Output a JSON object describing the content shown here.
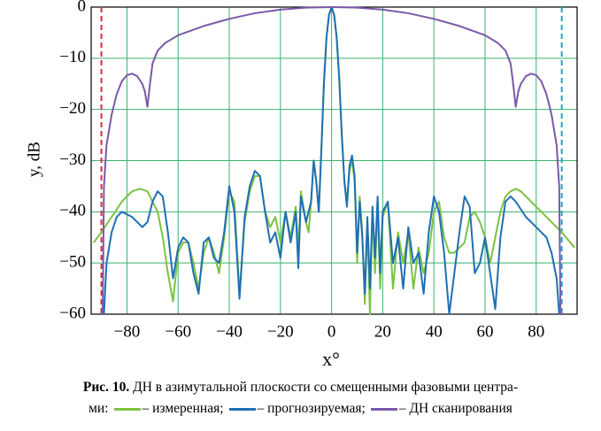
{
  "chart_data": {
    "type": "line",
    "xlabel": "x°",
    "ylabel": "y, dB",
    "caption_label": "Рис. 10.",
    "caption": "ДН в азимутальной плоскости со смещенными фазовыми центра-",
    "caption_cont": "ми:",
    "xlim": [
      -94,
      96
    ],
    "ylim": [
      -60,
      0
    ],
    "xticks": [
      {
        "value": -80,
        "label": "−80"
      },
      {
        "value": -60,
        "label": "−60"
      },
      {
        "value": -40,
        "label": "−40"
      },
      {
        "value": -20,
        "label": "−20"
      },
      0,
      20,
      40,
      60,
      80
    ],
    "yticks": [
      0,
      {
        "value": -10,
        "label": "−10"
      },
      {
        "value": -20,
        "label": "−20"
      },
      {
        "value": -30,
        "label": "−30"
      },
      {
        "value": -40,
        "label": "−40"
      },
      {
        "value": -50,
        "label": "−50"
      },
      {
        "value": -60,
        "label": "−60"
      }
    ],
    "grid": true,
    "grid_color": "#3cb36e",
    "vlines": [
      {
        "x": -90,
        "color": "#e0283c"
      },
      {
        "x": 90,
        "color": "#1aa6c8"
      }
    ],
    "series": [
      {
        "name": "– измеренная;",
        "color": "#7cc242",
        "x": [
          -93,
          -90,
          -86,
          -82,
          -78,
          -75,
          -72,
          -70,
          -68,
          -66,
          -64,
          -62,
          -60,
          -58,
          -56,
          -54,
          -52,
          -50,
          -48,
          -46,
          -44,
          -42,
          -40,
          -38,
          -36,
          -34,
          -32,
          -30,
          -28,
          -26,
          -24,
          -22,
          -20,
          -18,
          -16,
          -14,
          -13,
          -12,
          -10,
          -9,
          -8,
          -7,
          -6,
          -5,
          -4,
          -3,
          -2,
          -1,
          0,
          1,
          2,
          3,
          4,
          5,
          6,
          7,
          8,
          9,
          10,
          11,
          12,
          13,
          14,
          15,
          16,
          17,
          18,
          19,
          20,
          22,
          24,
          26,
          28,
          30,
          32,
          34,
          36,
          38,
          40,
          42,
          44,
          46,
          48,
          50,
          52,
          54,
          56,
          58,
          60,
          62,
          64,
          66,
          68,
          70,
          72,
          74,
          78,
          82,
          86,
          90,
          95
        ],
        "values": [
          -46,
          -44,
          -41,
          -38,
          -36,
          -35.5,
          -36,
          -38,
          -40,
          -45,
          -52,
          -57.5,
          -48,
          -46,
          -46,
          -50,
          -55,
          -48,
          -45,
          -48,
          -52,
          -45,
          -36,
          -38,
          -56,
          -42,
          -36,
          -33,
          -33,
          -40,
          -43,
          -41,
          -46,
          -40,
          -45,
          -39,
          -48,
          -36,
          -42,
          -44,
          -38,
          -30,
          -34,
          -40,
          -28,
          -15,
          -6,
          -1.5,
          0,
          -1.5,
          -6,
          -14,
          -25,
          -34,
          -38,
          -32,
          -30,
          -34,
          -50,
          -37,
          -44,
          -58,
          -42,
          -60,
          -40,
          -52,
          -38,
          -55,
          -41,
          -38,
          -55,
          -44,
          -50,
          -44,
          -55,
          -47,
          -52,
          -48,
          -40,
          -38,
          -45,
          -48,
          -48,
          -47,
          -46,
          -41,
          -40,
          -42,
          -45,
          -50,
          -45,
          -40,
          -37,
          -36,
          -35.5,
          -36,
          -38,
          -40,
          -42,
          -44,
          -47
        ]
      },
      {
        "name": "– прогнозируемая;",
        "color": "#1f6fb4",
        "x": [
          -89,
          -88,
          -86,
          -84,
          -82,
          -78,
          -76,
          -74,
          -72,
          -70,
          -68,
          -66,
          -64,
          -62,
          -60,
          -58,
          -56,
          -54,
          -52,
          -50,
          -48,
          -46,
          -44,
          -42,
          -40,
          -38,
          -36,
          -34,
          -32,
          -30,
          -28,
          -26,
          -24,
          -22,
          -20,
          -18,
          -16,
          -14,
          -13,
          -12,
          -10,
          -8,
          -7,
          -6,
          -5,
          -4,
          -3,
          -2,
          -1,
          0,
          1,
          2,
          3,
          4,
          5,
          6,
          7,
          8,
          9,
          10,
          11,
          12,
          13,
          14,
          15,
          16,
          17,
          18,
          19,
          20,
          22,
          24,
          26,
          28,
          30,
          32,
          34,
          36,
          38,
          40,
          42,
          44,
          46,
          48,
          50,
          52,
          54,
          56,
          58,
          60,
          62,
          64,
          66,
          68,
          70,
          72,
          76,
          80,
          84,
          86,
          88,
          89
        ],
        "values": [
          -60,
          -50,
          -44,
          -41,
          -40,
          -41,
          -42,
          -43,
          -42,
          -38,
          -36,
          -37,
          -44,
          -53,
          -47,
          -45,
          -46,
          -52,
          -56,
          -46,
          -45,
          -49,
          -50,
          -44,
          -35,
          -40,
          -57,
          -41,
          -35,
          -32,
          -33,
          -40,
          -46,
          -44,
          -49,
          -40,
          -46,
          -40,
          -51,
          -37,
          -42,
          -38,
          -30,
          -34,
          -40,
          -28,
          -15,
          -6,
          -1.5,
          0,
          -1.5,
          -6,
          -14,
          -25,
          -34,
          -39,
          -31,
          -29,
          -33,
          -48,
          -38,
          -45,
          -56,
          -41,
          -55,
          -39,
          -49,
          -37,
          -52,
          -40,
          -38,
          -50,
          -45,
          -55,
          -43,
          -50,
          -48,
          -56,
          -44,
          -37,
          -40,
          -48,
          -60,
          -52,
          -44,
          -37,
          -39,
          -52,
          -50,
          -45,
          -52,
          -59,
          -45,
          -38,
          -37,
          -38,
          -41,
          -43,
          -45,
          -48,
          -53,
          -60
        ]
      },
      {
        "name": "– ДН сканирования",
        "color": "#7b59a8",
        "x": [
          -89.5,
          -89,
          -88,
          -86,
          -84,
          -82,
          -80,
          -78,
          -76,
          -74,
          -73,
          -72,
          -71,
          -70,
          -68,
          -65,
          -60,
          -50,
          -40,
          -30,
          -20,
          -10,
          0,
          10,
          20,
          30,
          40,
          50,
          60,
          65,
          68,
          70,
          71,
          72,
          73,
          74,
          76,
          78,
          80,
          82,
          84,
          86,
          88,
          89,
          89.5
        ],
        "values": [
          -60,
          -35,
          -27,
          -21,
          -17,
          -14.5,
          -13.3,
          -13,
          -13.5,
          -15,
          -16.5,
          -19.5,
          -15,
          -11,
          -8.5,
          -7,
          -5.5,
          -3.7,
          -2.3,
          -1.2,
          -0.5,
          -0.1,
          0,
          -0.1,
          -0.5,
          -1.2,
          -2.3,
          -3.7,
          -5.5,
          -7,
          -8.5,
          -11,
          -15,
          -19.5,
          -16.5,
          -15,
          -13.5,
          -13,
          -13.3,
          -14.5,
          -17,
          -21,
          -27,
          -35,
          -60
        ]
      }
    ]
  }
}
